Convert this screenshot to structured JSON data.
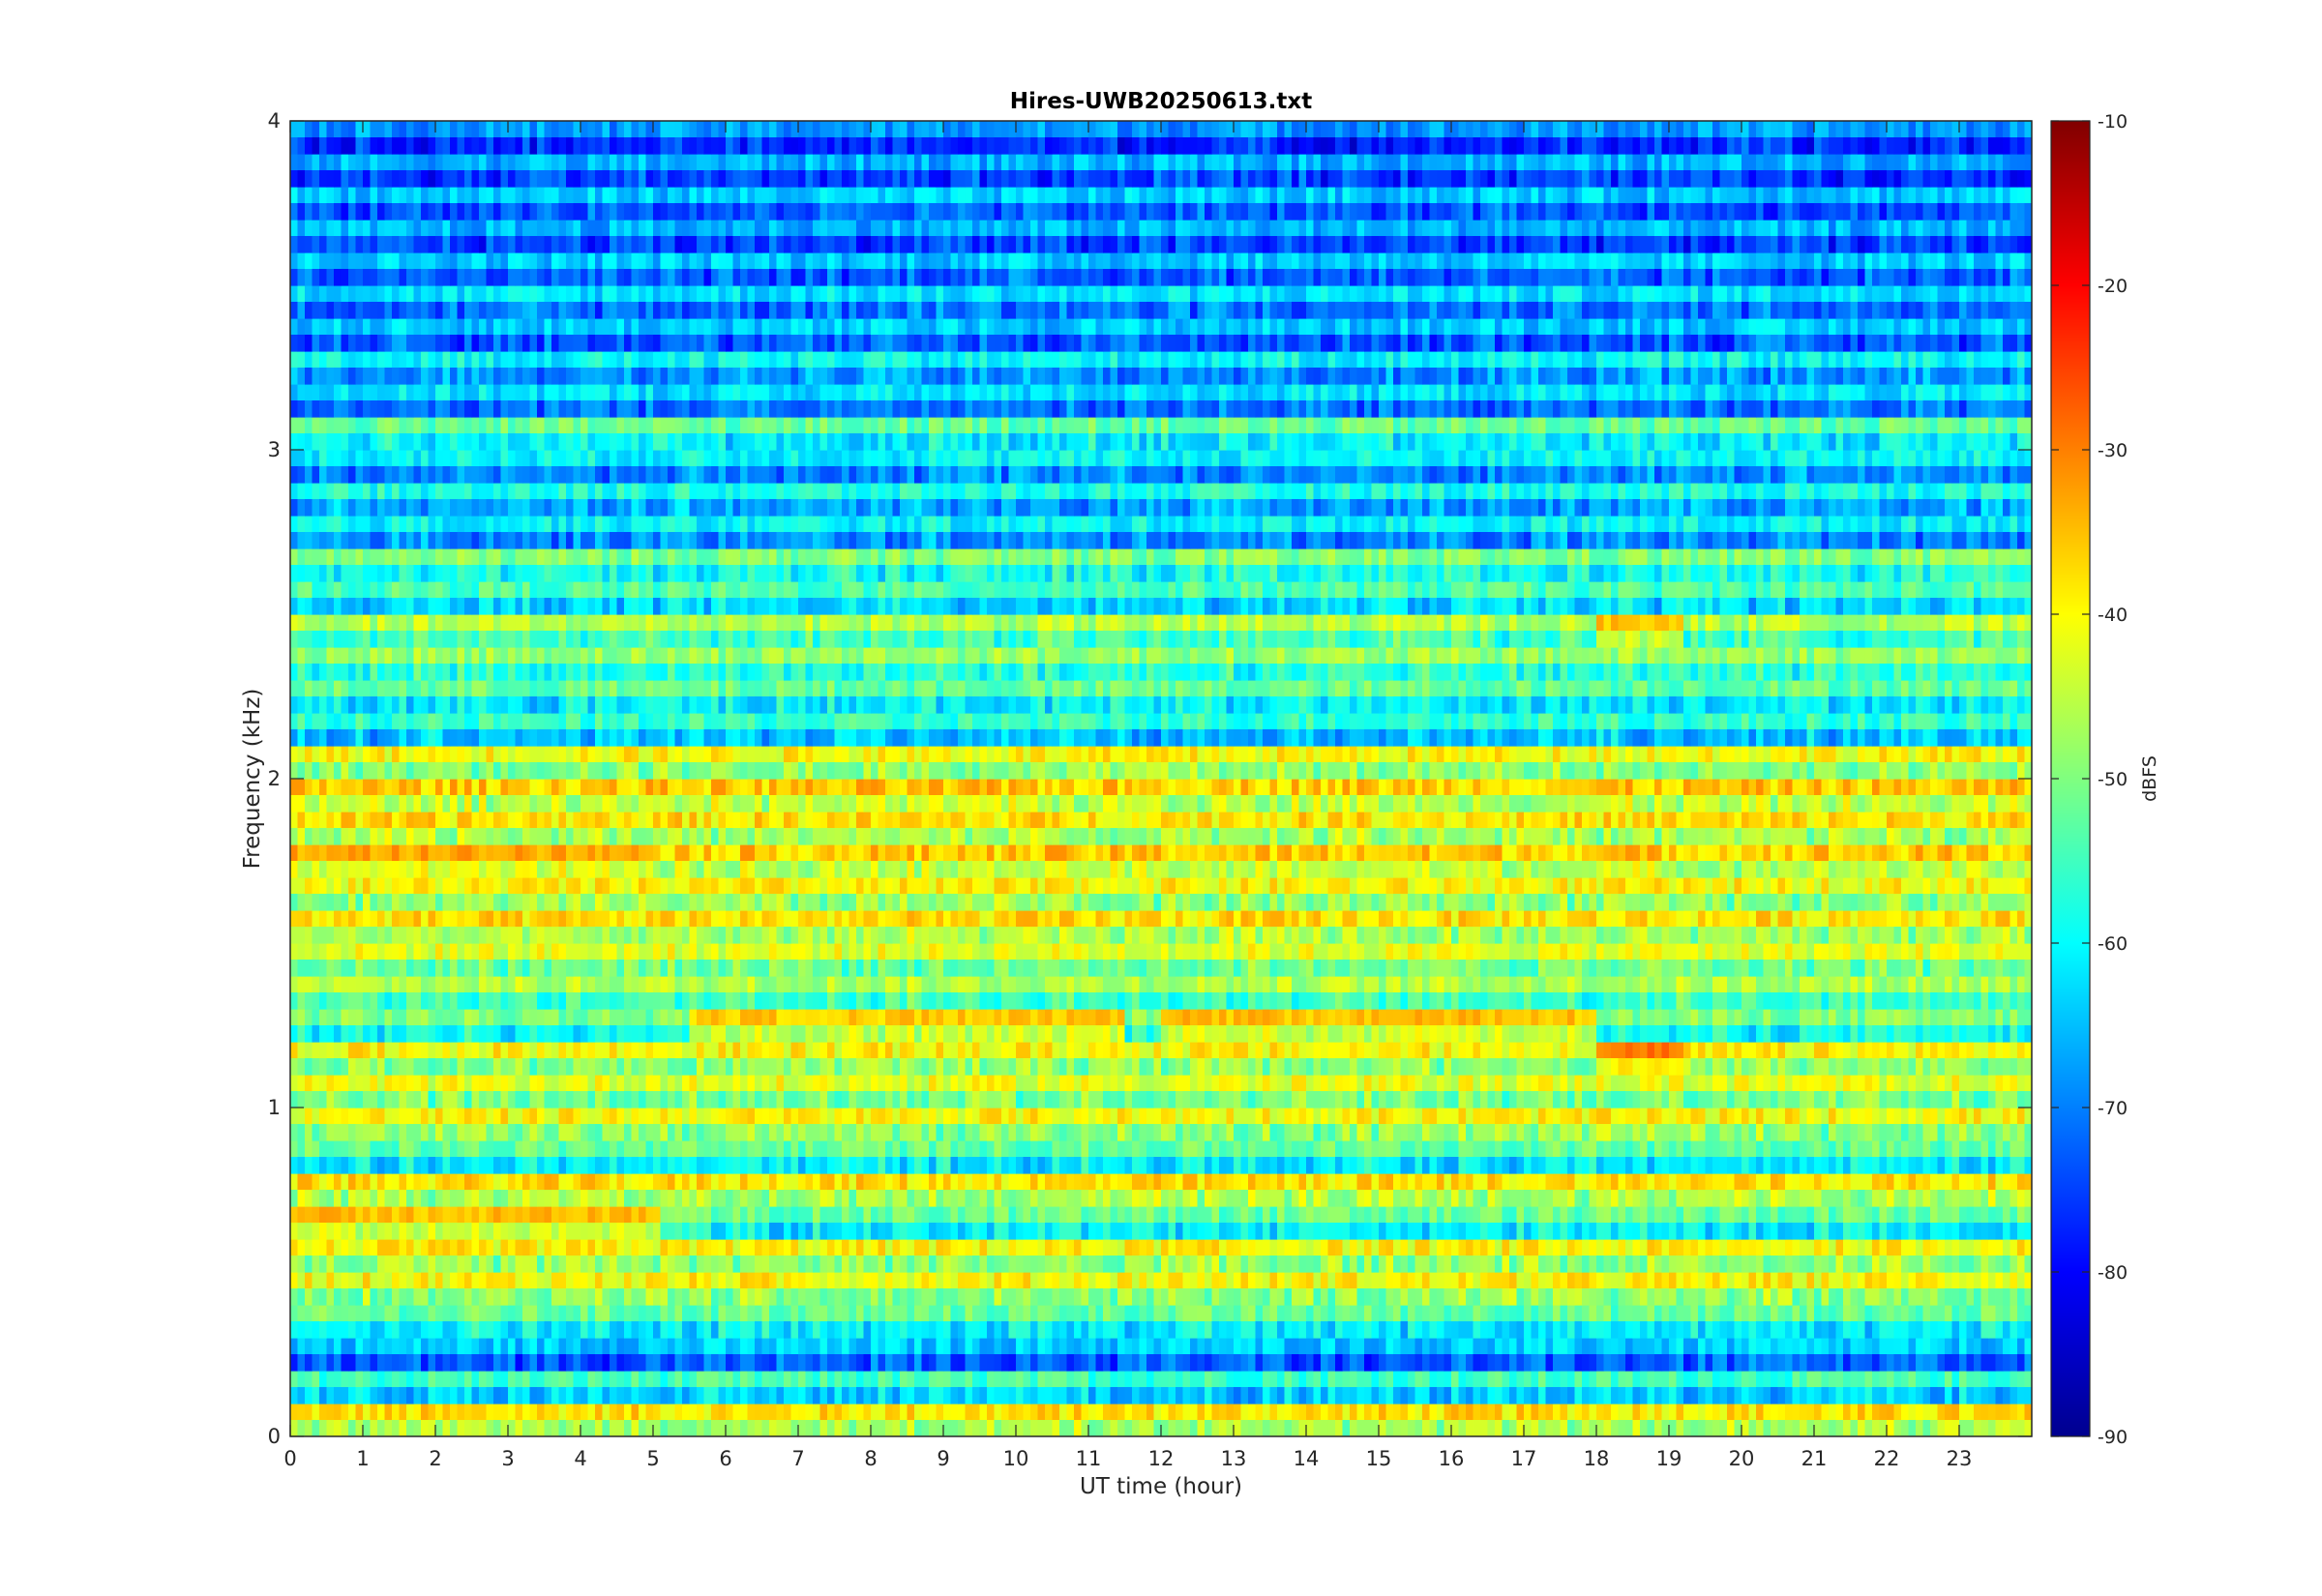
{
  "chart_data": {
    "type": "heatmap",
    "title": "Hires-UWB20250613.txt",
    "xlabel": "UT time (hour)",
    "ylabel": "Frequency (kHz)",
    "xlim": [
      0,
      24
    ],
    "ylim": [
      0,
      4
    ],
    "x_ticks": [
      "0",
      "1",
      "2",
      "3",
      "4",
      "5",
      "6",
      "7",
      "8",
      "9",
      "10",
      "11",
      "12",
      "13",
      "14",
      "15",
      "16",
      "17",
      "18",
      "19",
      "20",
      "21",
      "22",
      "23"
    ],
    "y_ticks": [
      "0",
      "1",
      "2",
      "3",
      "4"
    ],
    "colorbar": {
      "label": "dBFS",
      "range": [
        -90,
        -10
      ],
      "ticks": [
        "-10",
        "-20",
        "-30",
        "-40",
        "-50",
        "-60",
        "-70",
        "-80",
        "-90"
      ],
      "colormap": "jet"
    },
    "band_levels_dbfs": {
      "freq_step_khz": 0.1,
      "freq_start_khz": 0.0,
      "values": [
        -38,
        -55,
        -64,
        -52,
        -40,
        -40,
        -52,
        -38,
        -52,
        -40,
        -42,
        -40,
        -50,
        -46,
        -42,
        -38,
        -40,
        -36,
        -38,
        -36,
        -40,
        -56,
        -52,
        -48,
        -46,
        -54,
        -50,
        -60,
        -58,
        -60,
        -52,
        -62,
        -60,
        -64,
        -62,
        -64,
        -66,
        -64,
        -66,
        -68
      ]
    },
    "noted_features": [
      {
        "x_range": [
          0,
          5.1
        ],
        "freq_khz": 1.75,
        "level_dbfs": -33
      },
      {
        "x_range": [
          0,
          5.1
        ],
        "freq_khz": 0.65,
        "level_dbfs": -35
      },
      {
        "x_range": [
          18,
          19.2
        ],
        "freq_khz": 1.15,
        "level_dbfs": -30
      },
      {
        "x_range": [
          18,
          19.2
        ],
        "freq_khz": 2.45,
        "level_dbfs": -35
      },
      {
        "x_range": [
          5.5,
          11.5
        ],
        "freq_khz": 1.25,
        "level_dbfs": -36
      },
      {
        "x_range": [
          12,
          18
        ],
        "freq_khz": 1.25,
        "level_dbfs": -35
      }
    ]
  }
}
